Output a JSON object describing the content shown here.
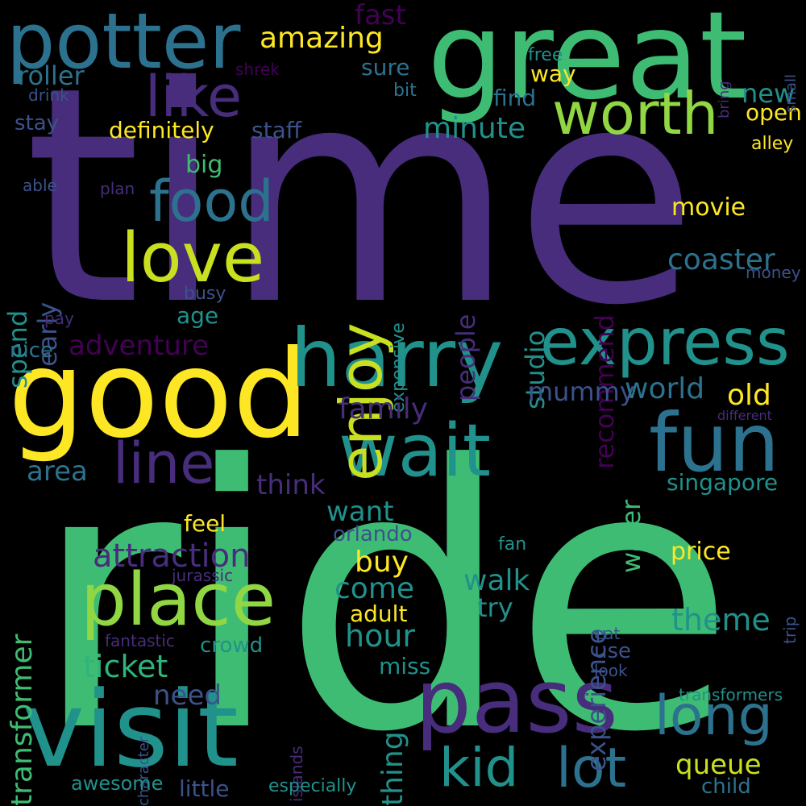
{
  "palette": {
    "background": "#000000",
    "yellow": "#FDE725",
    "yellow_green": "#C8E020",
    "light_green": "#90D743",
    "green": "#3FBC73",
    "teal_green": "#2FB47C",
    "teal": "#21918C",
    "blue_teal": "#2C728E",
    "blue": "#3B528B",
    "indigo": "#472D7B",
    "purple": "#440154"
  },
  "words": [
    {
      "id": "time",
      "text": "time"
    },
    {
      "id": "ride",
      "text": "ride"
    },
    {
      "id": "great",
      "text": "great"
    },
    {
      "id": "good",
      "text": "good"
    },
    {
      "id": "visit",
      "text": "visit"
    },
    {
      "id": "pass",
      "text": "pass"
    },
    {
      "id": "harry",
      "text": "harry"
    },
    {
      "id": "potter",
      "text": "potter"
    },
    {
      "id": "express",
      "text": "express"
    },
    {
      "id": "place",
      "text": "place"
    },
    {
      "id": "wait",
      "text": "wait"
    },
    {
      "id": "fun",
      "text": "fun"
    },
    {
      "id": "love",
      "text": "love"
    },
    {
      "id": "enjoy",
      "text": "enjoy"
    },
    {
      "id": "worth",
      "text": "worth"
    },
    {
      "id": "like",
      "text": "like"
    },
    {
      "id": "food",
      "text": "food"
    },
    {
      "id": "line",
      "text": "line"
    },
    {
      "id": "long",
      "text": "long"
    },
    {
      "id": "lot",
      "text": "lot"
    },
    {
      "id": "kid",
      "text": "kid"
    },
    {
      "id": "attraction",
      "text": "attraction"
    },
    {
      "id": "amazing",
      "text": "amazing"
    },
    {
      "id": "roller",
      "text": "roller"
    },
    {
      "id": "coaster",
      "text": "coaster"
    },
    {
      "id": "minute",
      "text": "minute"
    },
    {
      "id": "definitely",
      "text": "definitely"
    },
    {
      "id": "staff",
      "text": "staff"
    },
    {
      "id": "stay",
      "text": "stay"
    },
    {
      "id": "drink",
      "text": "drink"
    },
    {
      "id": "shrek",
      "text": "shrek"
    },
    {
      "id": "sure",
      "text": "sure"
    },
    {
      "id": "bit",
      "text": "bit"
    },
    {
      "id": "fast",
      "text": "fast"
    },
    {
      "id": "free",
      "text": "free"
    },
    {
      "id": "way",
      "text": "way"
    },
    {
      "id": "find",
      "text": "find"
    },
    {
      "id": "new",
      "text": "new"
    },
    {
      "id": "open",
      "text": "open"
    },
    {
      "id": "alley",
      "text": "alley"
    },
    {
      "id": "bring",
      "text": "bring"
    },
    {
      "id": "small",
      "text": "small"
    },
    {
      "id": "big",
      "text": "big"
    },
    {
      "id": "able",
      "text": "able"
    },
    {
      "id": "plan",
      "text": "plan"
    },
    {
      "id": "movie",
      "text": "movie"
    },
    {
      "id": "money",
      "text": "money"
    },
    {
      "id": "recommend",
      "text": "recommend"
    },
    {
      "id": "people",
      "text": "people"
    },
    {
      "id": "studio",
      "text": "studio"
    },
    {
      "id": "expensive",
      "text": "expensive"
    },
    {
      "id": "spend",
      "text": "spend"
    },
    {
      "id": "early",
      "text": "early"
    },
    {
      "id": "busy",
      "text": "busy"
    },
    {
      "id": "age",
      "text": "age"
    },
    {
      "id": "pay",
      "text": "pay"
    },
    {
      "id": "nice",
      "text": "nice"
    },
    {
      "id": "adventure",
      "text": "adventure"
    },
    {
      "id": "family",
      "text": "family"
    },
    {
      "id": "mummy",
      "text": "mummy"
    },
    {
      "id": "world",
      "text": "world"
    },
    {
      "id": "old",
      "text": "old"
    },
    {
      "id": "different",
      "text": "different"
    },
    {
      "id": "area",
      "text": "area"
    },
    {
      "id": "think",
      "text": "think"
    },
    {
      "id": "experience",
      "text": "experience"
    },
    {
      "id": "water",
      "text": "water"
    },
    {
      "id": "singapore",
      "text": "singapore"
    },
    {
      "id": "transformer",
      "text": "transformer"
    },
    {
      "id": "feel",
      "text": "feel"
    },
    {
      "id": "want",
      "text": "want"
    },
    {
      "id": "orlando",
      "text": "orlando"
    },
    {
      "id": "buy",
      "text": "buy"
    },
    {
      "id": "fan",
      "text": "fan"
    },
    {
      "id": "price",
      "text": "price"
    },
    {
      "id": "jurassic",
      "text": "jurassic"
    },
    {
      "id": "come",
      "text": "come"
    },
    {
      "id": "walk",
      "text": "walk"
    },
    {
      "id": "try",
      "text": "try"
    },
    {
      "id": "adult",
      "text": "adult"
    },
    {
      "id": "theme",
      "text": "theme"
    },
    {
      "id": "trip",
      "text": "trip"
    },
    {
      "id": "hour",
      "text": "hour"
    },
    {
      "id": "fantastic",
      "text": "fantastic"
    },
    {
      "id": "crowd",
      "text": "crowd"
    },
    {
      "id": "eat",
      "text": "eat"
    },
    {
      "id": "use",
      "text": "use"
    },
    {
      "id": "look",
      "text": "look"
    },
    {
      "id": "ticket",
      "text": "ticket"
    },
    {
      "id": "miss",
      "text": "miss"
    },
    {
      "id": "need",
      "text": "need"
    },
    {
      "id": "character",
      "text": "character"
    },
    {
      "id": "islands",
      "text": "islands"
    },
    {
      "id": "thing",
      "text": "thing"
    },
    {
      "id": "transformers",
      "text": "transformers"
    },
    {
      "id": "queue",
      "text": "queue"
    },
    {
      "id": "awesome",
      "text": "awesome"
    },
    {
      "id": "little",
      "text": "little"
    },
    {
      "id": "especially",
      "text": "especially"
    },
    {
      "id": "child",
      "text": "child"
    }
  ]
}
